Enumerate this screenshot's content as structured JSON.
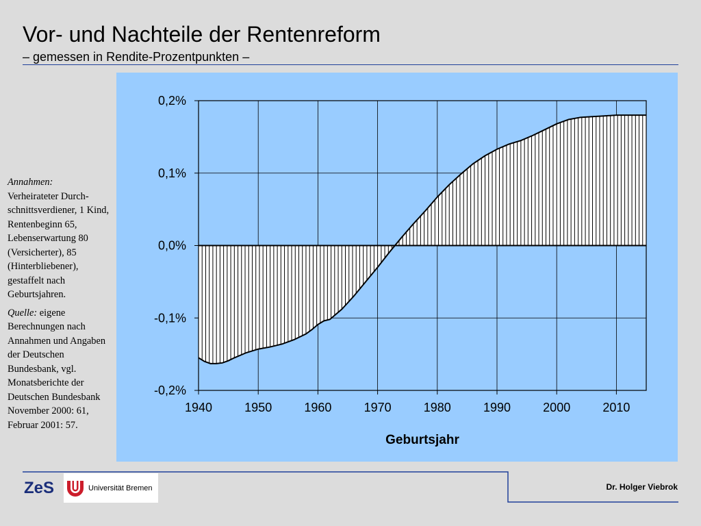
{
  "slide": {
    "title": "Vor- und Nachteile der Rentenreform",
    "subtitle": "– gemessen in Rendite-Prozentpunkten –"
  },
  "sidebar": {
    "assumptions_label": "Annahmen:",
    "assumptions_text": "Verheirateter Durch-schnittsverdiener, 1 Kind, Rentenbeginn 65, Lebenserwartung 80 (Versicherter), 85 (Hinterbliebener), gestaffelt nach Geburtsjahren.",
    "source_label": "Quelle:",
    "source_text": "eigene Berechnungen nach Annahmen und Angaben der Deutschen Bundesbank, vgl. Monatsberichte der Deutschen Bundesbank November 2000: 61, Februar 2001: 57."
  },
  "footer": {
    "zes_logo": "ZeS",
    "university_name": "Universität Bremen",
    "author": "Dr. Holger Viebrok"
  },
  "colors": {
    "panel_background": "#99ccff",
    "plot_background": "#99ccff",
    "area_fill": "#ffffff",
    "hatch_stroke": "#000000",
    "rule_color": "#1f3f99",
    "zes_logo_color": "#1a2e7a",
    "uni_logo_red": "#cc1d2b"
  },
  "chart_data": {
    "type": "area",
    "title": "",
    "xlabel": "Geburtsjahr",
    "ylabel": "",
    "xlim": [
      1940,
      2015
    ],
    "ylim": [
      -0.2,
      0.2
    ],
    "x_ticks": [
      1940,
      1950,
      1960,
      1970,
      1980,
      1990,
      2000,
      2010
    ],
    "y_ticks": [
      {
        "value": 0.2,
        "label": "0,2%"
      },
      {
        "value": 0.1,
        "label": "0,1%"
      },
      {
        "value": 0.0,
        "label": "0,0%"
      },
      {
        "value": -0.1,
        "label": "-0,1%"
      },
      {
        "value": -0.2,
        "label": "-0,2%"
      }
    ],
    "grid": true,
    "fill_pattern": "vertical-hatch",
    "series": [
      {
        "x": [
          1940,
          1941,
          1942,
          1943,
          1944,
          1945,
          1946,
          1948,
          1950,
          1952,
          1954,
          1956,
          1958,
          1959,
          1960,
          1961,
          1962,
          1964,
          1966,
          1968,
          1970,
          1972,
          1974,
          1976,
          1978,
          1980,
          1982,
          1984,
          1986,
          1988,
          1990,
          1992,
          1994,
          1996,
          1998,
          2000,
          2002,
          2004,
          2006,
          2008,
          2010,
          2012,
          2015
        ],
        "y": [
          -0.155,
          -0.16,
          -0.163,
          -0.163,
          -0.162,
          -0.159,
          -0.155,
          -0.148,
          -0.143,
          -0.14,
          -0.136,
          -0.13,
          -0.122,
          -0.116,
          -0.109,
          -0.104,
          -0.102,
          -0.088,
          -0.07,
          -0.05,
          -0.03,
          -0.009,
          0.011,
          0.03,
          0.048,
          0.067,
          0.084,
          0.099,
          0.113,
          0.124,
          0.133,
          0.14,
          0.145,
          0.152,
          0.16,
          0.168,
          0.174,
          0.177,
          0.178,
          0.179,
          0.18,
          0.18,
          0.18
        ]
      }
    ]
  }
}
